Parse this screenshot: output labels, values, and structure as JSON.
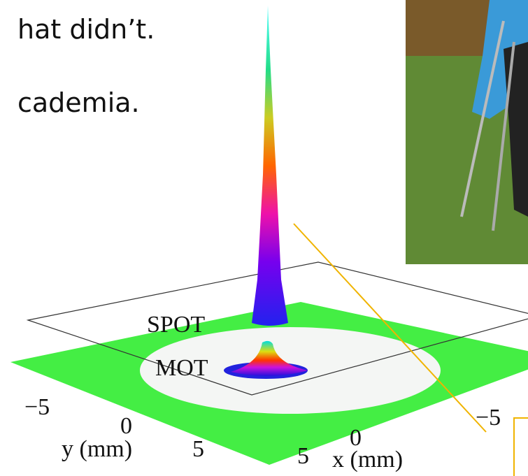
{
  "slide": {
    "text_lines": [
      "hat didn’t.",
      "cademia."
    ]
  },
  "figure": {
    "plot_labels": [
      "SPOT",
      "MOT"
    ],
    "y_axis": {
      "ticks": [
        "−5",
        "0",
        "5"
      ],
      "label": "y (mm)"
    },
    "x_axis": {
      "ticks": [
        "5",
        "0",
        "−5"
      ],
      "label": "x (mm)"
    }
  }
}
